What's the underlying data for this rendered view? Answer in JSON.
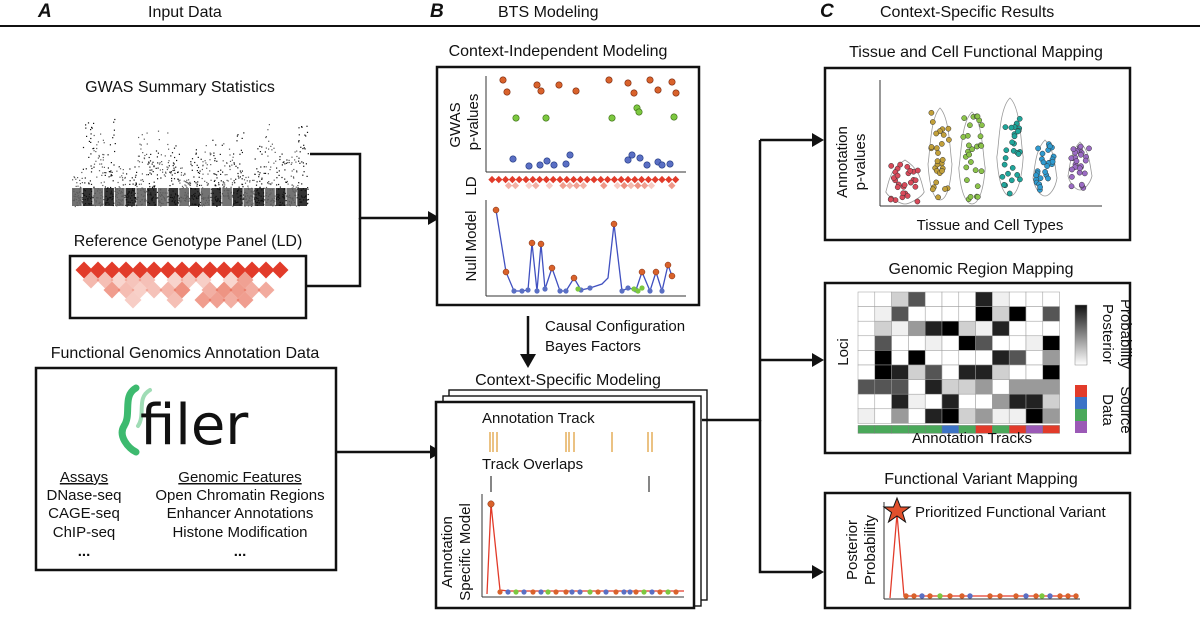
{
  "panels": {
    "a": {
      "letter": "A",
      "header": "Input Data"
    },
    "b": {
      "letter": "B",
      "header": "BTS Modeling"
    },
    "c": {
      "letter": "C",
      "header": "Context-Specific Results"
    }
  },
  "input": {
    "gwas_title": "GWAS Summary Statistics",
    "ld_title": "Reference Genotype Panel (LD)",
    "annotation_title": "Functional Genomics Annotation Data",
    "logo_text": "filer",
    "assays_header": "Assays",
    "assays": [
      "DNase-seq",
      "CAGE-seq",
      "ChIP-seq",
      "..."
    ],
    "features_header": "Genomic Features",
    "features": [
      "Open Chromatin Regions",
      "Enhancer Annotations",
      "Histone Modification",
      "..."
    ]
  },
  "modeling": {
    "ci_title": "Context-Independent Modeling",
    "gwas_label_1": "GWAS",
    "gwas_label_2": "p-values",
    "ld_label": "LD",
    "null_label": "Null Model",
    "bf_line_1": "Causal Configuration",
    "bf_line_2": "Bayes Factors",
    "cs_title": "Context-Specific Modeling",
    "track_label": "Annotation Track",
    "overlap_label": "Track Overlaps",
    "asm_label_1": "Annotation",
    "asm_label_2": "Specific Model"
  },
  "results": {
    "tissue_title": "Tissue and Cell Functional Mapping",
    "tissue_ylabel_1": "Annotation",
    "tissue_ylabel_2": "p-values",
    "tissue_xlabel": "Tissue and Cell Types",
    "region_title": "Genomic Region Mapping",
    "loci_label": "Loci",
    "posterior_label_1": "Posterior",
    "posterior_label_2": "Probability",
    "data_label": "Data",
    "source_label": "Source",
    "tracks_label": "Annotation Tracks",
    "variant_title": "Functional Variant Mapping",
    "pp_label_1": "Posterior",
    "pp_label_2": "Probability",
    "prioritized_label": "Prioritized Functional Variant"
  },
  "colors": {
    "red": "#e23b2a",
    "orange": "#d9622b",
    "blue": "#5a6fc4",
    "green": "#7cc83f",
    "teal": "#1fa69b",
    "olive": "#c2a03a",
    "purple": "#9b6bc4",
    "logo_green": "#3dba6f",
    "source_colors": [
      "#e23b2a",
      "#3c73c6",
      "#4aa85a",
      "#9b59b6"
    ]
  }
}
